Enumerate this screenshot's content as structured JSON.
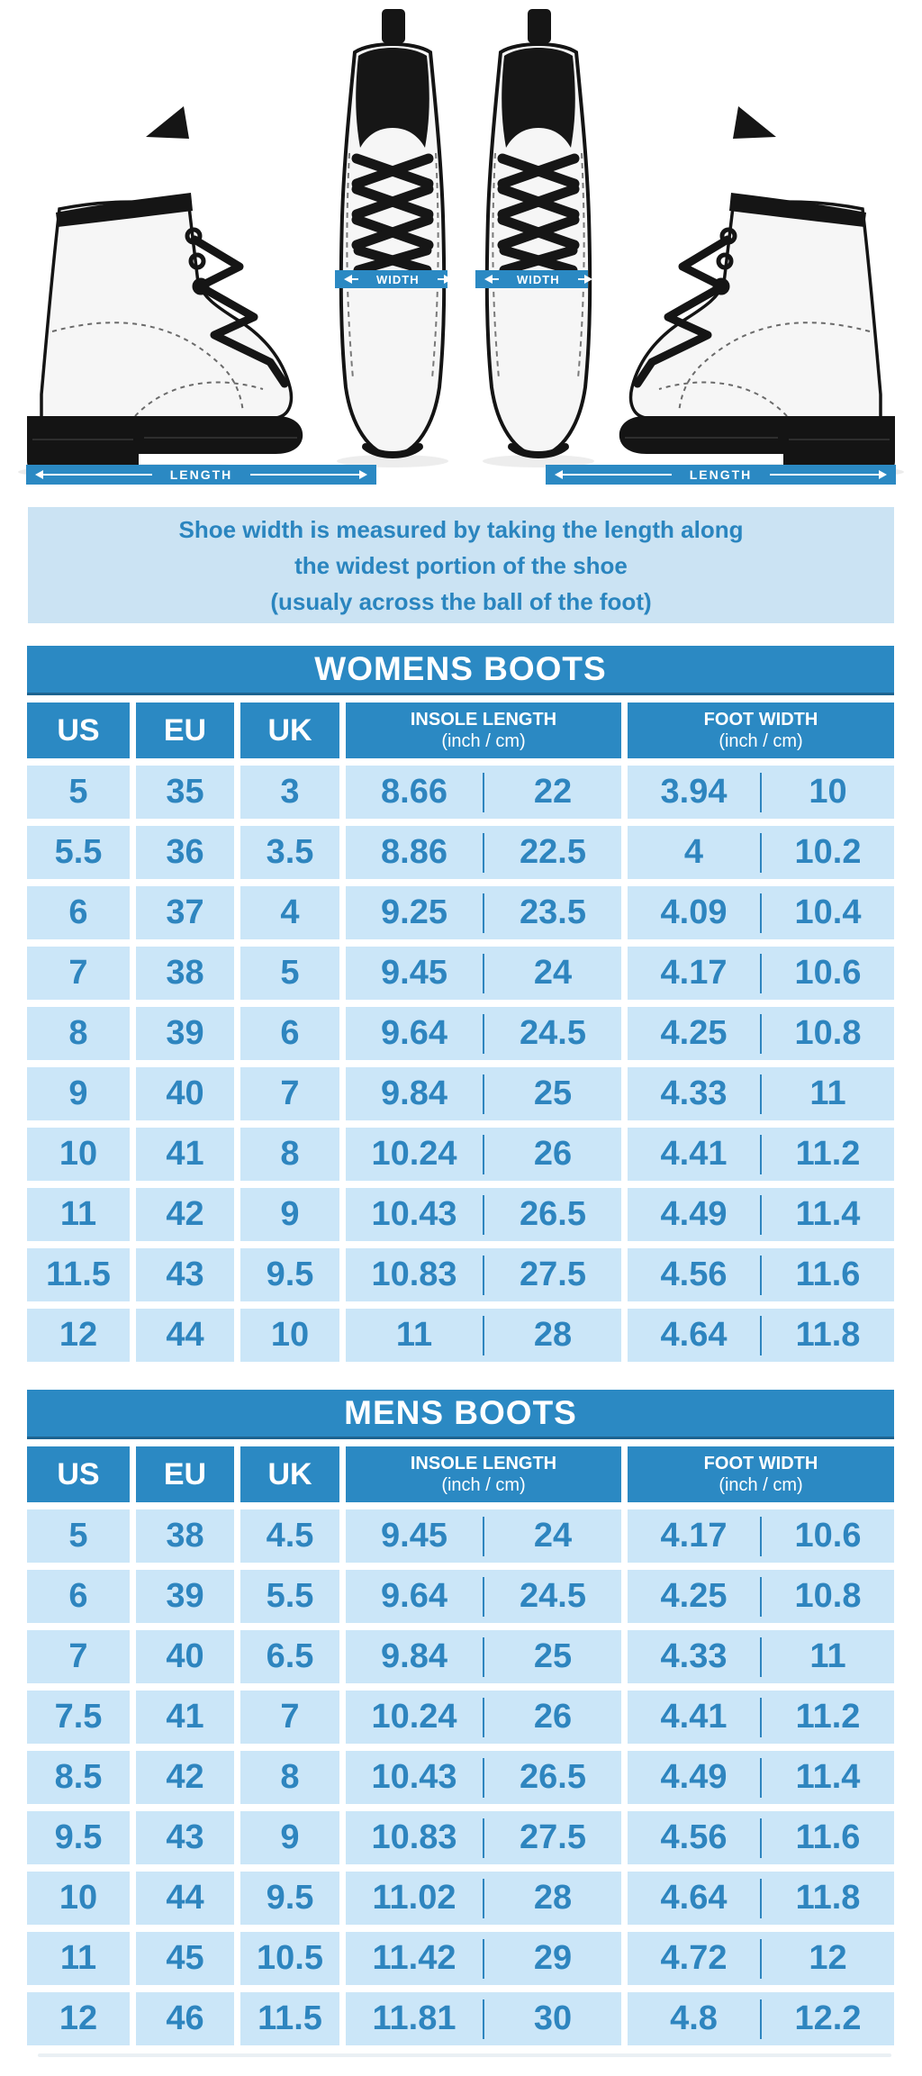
{
  "labels": {
    "width": "WIDTH",
    "length": "LENGTH"
  },
  "note": {
    "lines": [
      "Shoe width is measured by taking the length along",
      "the widest portion of the shoe",
      "(usualy across the ball of the foot)"
    ]
  },
  "colors": {
    "banner_blue": "#2b89c3",
    "title_border_blue": "#1d6390",
    "cell_light_blue": "#cbe6f8",
    "note_bg_blue": "#cbe3f3",
    "value_text_blue": "#2e85bf",
    "white": "#ffffff"
  },
  "tables": [
    {
      "title": "WOMENS BOOTS",
      "header": {
        "us": "US",
        "eu": "EU",
        "uk": "UK",
        "insole_title": "INSOLE LENGTH",
        "insole_sub": "(inch / cm)",
        "foot_title": "FOOT WIDTH",
        "foot_sub": "(inch / cm)"
      },
      "rows": [
        [
          "5",
          "35",
          "3",
          "8.66",
          "22",
          "3.94",
          "10"
        ],
        [
          "5.5",
          "36",
          "3.5",
          "8.86",
          "22.5",
          "4",
          "10.2"
        ],
        [
          "6",
          "37",
          "4",
          "9.25",
          "23.5",
          "4.09",
          "10.4"
        ],
        [
          "7",
          "38",
          "5",
          "9.45",
          "24",
          "4.17",
          "10.6"
        ],
        [
          "8",
          "39",
          "6",
          "9.64",
          "24.5",
          "4.25",
          "10.8"
        ],
        [
          "9",
          "40",
          "7",
          "9.84",
          "25",
          "4.33",
          "11"
        ],
        [
          "10",
          "41",
          "8",
          "10.24",
          "26",
          "4.41",
          "11.2"
        ],
        [
          "11",
          "42",
          "9",
          "10.43",
          "26.5",
          "4.49",
          "11.4"
        ],
        [
          "11.5",
          "43",
          "9.5",
          "10.83",
          "27.5",
          "4.56",
          "11.6"
        ],
        [
          "12",
          "44",
          "10",
          "11",
          "28",
          "4.64",
          "11.8"
        ]
      ]
    },
    {
      "title": "MENS BOOTS",
      "header": {
        "us": "US",
        "eu": "EU",
        "uk": "UK",
        "insole_title": "INSOLE LENGTH",
        "insole_sub": "(inch / cm)",
        "foot_title": "FOOT WIDTH",
        "foot_sub": "(inch / cm)"
      },
      "rows": [
        [
          "5",
          "38",
          "4.5",
          "9.45",
          "24",
          "4.17",
          "10.6"
        ],
        [
          "6",
          "39",
          "5.5",
          "9.64",
          "24.5",
          "4.25",
          "10.8"
        ],
        [
          "7",
          "40",
          "6.5",
          "9.84",
          "25",
          "4.33",
          "11"
        ],
        [
          "7.5",
          "41",
          "7",
          "10.24",
          "26",
          "4.41",
          "11.2"
        ],
        [
          "8.5",
          "42",
          "8",
          "10.43",
          "26.5",
          "4.49",
          "11.4"
        ],
        [
          "9.5",
          "43",
          "9",
          "10.83",
          "27.5",
          "4.56",
          "11.6"
        ],
        [
          "10",
          "44",
          "9.5",
          "11.02",
          "28",
          "4.64",
          "11.8"
        ],
        [
          "11",
          "45",
          "10.5",
          "11.42",
          "29",
          "4.72",
          "12"
        ],
        [
          "12",
          "46",
          "11.5",
          "11.81",
          "30",
          "4.8",
          "12.2"
        ]
      ]
    }
  ]
}
